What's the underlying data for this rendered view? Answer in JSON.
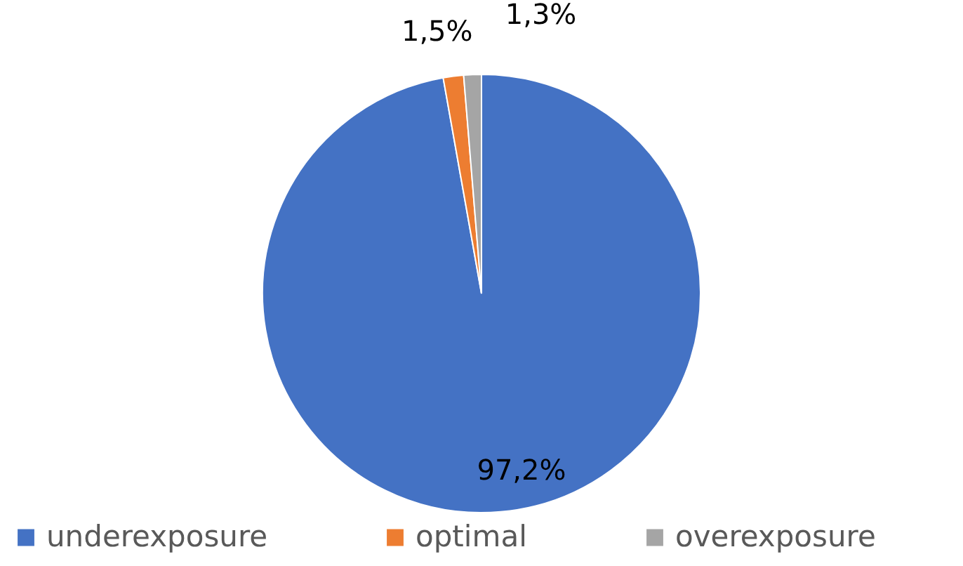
{
  "chart_data": {
    "type": "pie",
    "categories": [
      "underexposure",
      "optimal",
      "overexposure"
    ],
    "values": [
      97.2,
      1.5,
      1.3
    ],
    "value_labels": [
      "97,2%",
      "1,5%",
      "1,3%"
    ],
    "colors": [
      "#4472c4",
      "#ed7d31",
      "#a5a5a5"
    ],
    "legend": "bottom"
  }
}
